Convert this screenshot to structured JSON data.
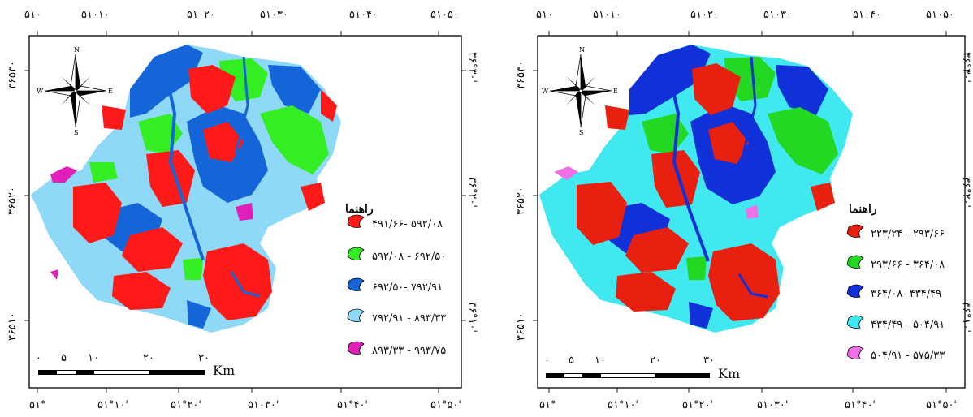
{
  "maps": [
    {
      "top_labels": [
        "۵۱۰",
        "۵۱۰۱۰",
        "۵۱۰۲۰",
        "۵۱۰۳۰",
        "۵۱۰۴۰",
        "۵۱۰۵۰"
      ],
      "bottom_labels": [
        "۵۱°",
        "۵۱°۱۰'",
        "۵۱°۲۰'",
        "۵۱۰۳۰'",
        "۵۱°۴۰'",
        "۵۱°۵۰'"
      ],
      "left_labels": [
        "۳۶۵۳۰",
        "۳۶۵۲۰",
        "۳۶۵۱۰"
      ],
      "right_labels": [
        "۳۶°۳۰'",
        "۳۶°۲۰'",
        "۳۶°۱۰'"
      ],
      "legend_title": "راهنما",
      "legend": [
        {
          "label": "۴۹۱/۶۶- ۵۹۲/۰۸",
          "color": "#ff1a1a"
        },
        {
          "label": "۵۹۲/۰۸ - ۶۹۲/۵۰",
          "color": "#33ee22"
        },
        {
          "label": "۶۹۲/۵۰- ۷۹۲/۹۱",
          "color": "#1466d8"
        },
        {
          "label": "۷۹۲/۹۱ - ۸۹۳/۳۳",
          "color": "#8ed8f8"
        },
        {
          "label": "۸۹۳/۳۳ - ۹۹۳/۷۵",
          "color": "#e020b8"
        }
      ],
      "scale_labels": [
        "۰",
        "۵",
        "۱۰",
        "۲۰",
        "۳۰"
      ],
      "scale_unit": "Km",
      "compass": {
        "n": "N",
        "s": "S",
        "e": "E",
        "w": "W"
      }
    },
    {
      "top_labels": [
        "۵۱۰",
        "۵۱۰۱۰",
        "۵۱۰۲۰",
        "۵۱۰۳۰",
        "۵۱۰۴۰",
        "۵۱۰۵۰"
      ],
      "bottom_labels": [
        "۵۱°",
        "۵۱°۱۰'",
        "۵۱°۲۰'",
        "۵۱۰۳۰'",
        "۵۱°۴۰'",
        "۵۱°۵۰'"
      ],
      "left_labels": [
        "۳۶۵۳۰",
        "۳۶۵۲۰",
        "۳۶۵۱۰"
      ],
      "right_labels": [
        "۳۶°۳۰'",
        "۳۶°۲۰'",
        "۳۶°۱۰'"
      ],
      "legend_title": "راهنما",
      "legend": [
        {
          "label": "۲۲۳/۲۴ - ۲۹۳/۶۶",
          "color": "#e82010"
        },
        {
          "label": "۲۹۳/۶۶ - ۳۶۴/۰۸",
          "color": "#22d822"
        },
        {
          "label": "۳۶۴/۰۸- ۴۳۴/۴۹",
          "color": "#1030d8"
        },
        {
          "label": "۴۳۴/۴۹ - ۵۰۴/۹۱",
          "color": "#40e8f0"
        },
        {
          "label": "۵۰۴/۹۱ - ۵۷۵/۳۳",
          "color": "#f070e8"
        }
      ],
      "scale_labels": [
        "۰",
        "۵",
        "۱۰",
        "۲۰",
        "۳۰"
      ],
      "scale_unit": "Km",
      "compass": {
        "n": "N",
        "s": "S",
        "e": "E",
        "w": "W"
      }
    }
  ]
}
